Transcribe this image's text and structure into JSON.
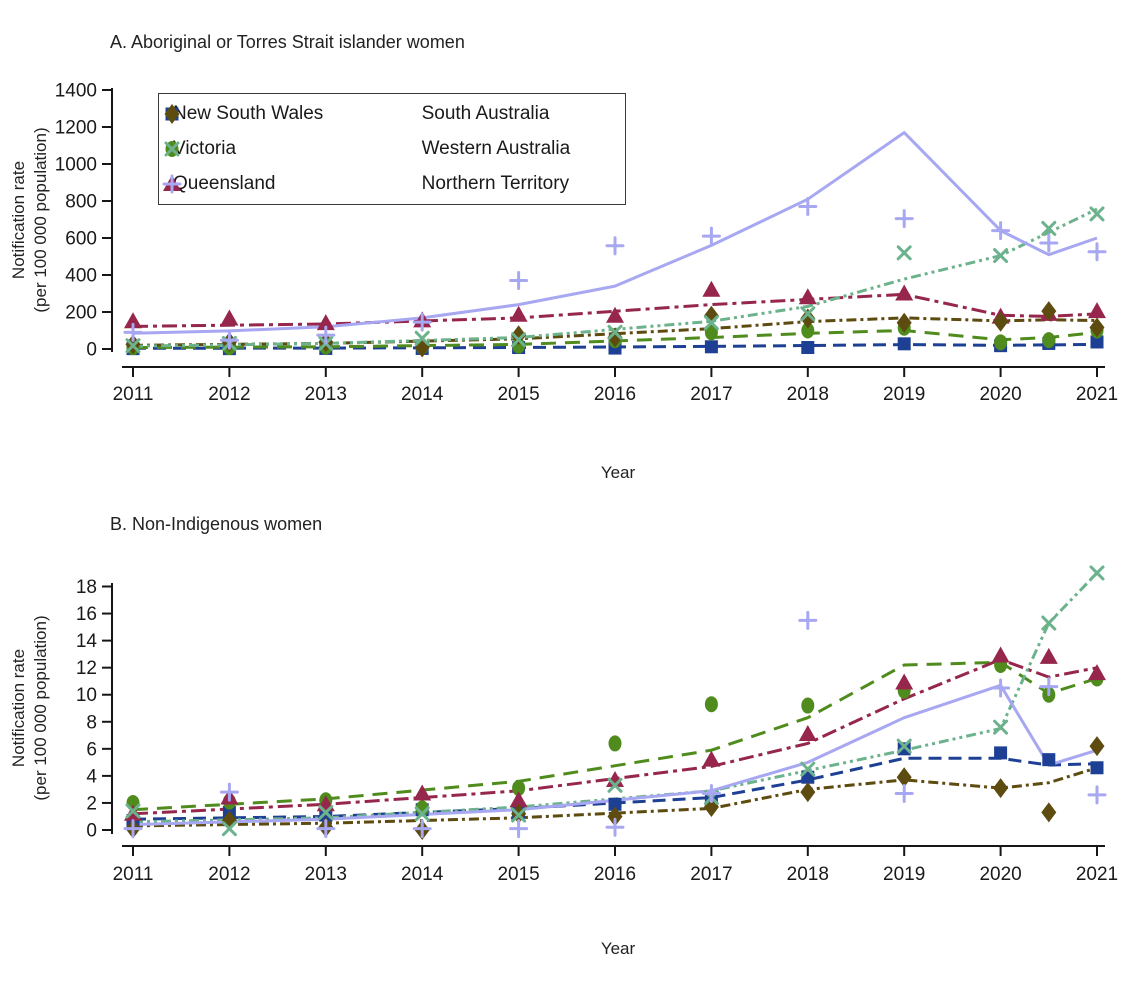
{
  "page": {
    "background": "#ffffff"
  },
  "legend": {
    "column1": [
      "New South Wales",
      "Victoria",
      "Queensland"
    ],
    "column2": [
      "South Australia",
      "Western Australia",
      "Northern Territory"
    ]
  },
  "series_styles": {
    "New South Wales": {
      "color": "#1e4094",
      "marker": "square",
      "dash": "13 7"
    },
    "Victoria": {
      "color": "#4f8c1d",
      "marker": "circle",
      "dash": "15 9"
    },
    "Queensland": {
      "color": "#96264c",
      "marker": "triangle",
      "dash": "15 5 4 5"
    },
    "South Australia": {
      "color": "#5e4b10",
      "marker": "diamond",
      "dash": "10 4 3 4"
    },
    "Western Australia": {
      "color": "#6cb28c",
      "marker": "x",
      "dash": "10 4 3 4 3 4"
    },
    "Northern Territory": {
      "color": "#a7a7f2",
      "marker": "plus",
      "dash": "none"
    }
  },
  "chart_data": [
    {
      "type": "scatter",
      "panel": "A",
      "title": "A. Aboriginal or Torres Strait islander women",
      "xlabel": "Year",
      "ylabel_line1": "Notification rate",
      "ylabel_line2": "(per 100 000 population)",
      "ylim": [
        0,
        1400
      ],
      "yticks": [
        0,
        200,
        400,
        600,
        800,
        1000,
        1200,
        1400
      ],
      "xticks": [
        2011,
        2012,
        2013,
        2014,
        2015,
        2016,
        2017,
        2018,
        2019,
        2020,
        2021
      ],
      "x_points": [
        2011,
        2012,
        2013,
        2014,
        2015,
        2016,
        2017,
        2018,
        2019,
        2020,
        2020.5,
        2021
      ],
      "grid": false,
      "legend_position": "top-left-inside",
      "series": [
        {
          "name": "New South Wales",
          "points": [
            2,
            2,
            3,
            3,
            8,
            5,
            12,
            8,
            28,
            18,
            30,
            38
          ],
          "fit_x": [
            2011,
            2013,
            2015,
            2017,
            2019,
            2020,
            2020.5,
            2021
          ],
          "fit_y": [
            4,
            5,
            8,
            14,
            24,
            20,
            22,
            25
          ]
        },
        {
          "name": "Victoria",
          "points": [
            10,
            10,
            12,
            12,
            18,
            48,
            90,
            100,
            115,
            36,
            48,
            100
          ],
          "fit_x": [
            2011,
            2013,
            2015,
            2017,
            2018,
            2019,
            2020,
            2020.5,
            2021
          ],
          "fit_y": [
            8,
            12,
            25,
            62,
            85,
            100,
            50,
            62,
            90
          ]
        },
        {
          "name": "Queensland",
          "points": [
            150,
            165,
            140,
            155,
            185,
            180,
            320,
            280,
            300,
            175,
            190,
            205
          ],
          "fit_x": [
            2011,
            2013,
            2015,
            2017,
            2018,
            2019,
            2020,
            2020.5,
            2021
          ],
          "fit_y": [
            122,
            135,
            168,
            240,
            268,
            295,
            182,
            176,
            190
          ]
        },
        {
          "name": "South Australia",
          "points": [
            25,
            37,
            37,
            8,
            74,
            63,
            180,
            165,
            142,
            147,
            205,
            116
          ],
          "fit_x": [
            2011,
            2013,
            2015,
            2017,
            2018,
            2019,
            2020,
            2020.5,
            2021
          ],
          "fit_y": [
            20,
            30,
            55,
            110,
            148,
            168,
            152,
            158,
            154
          ]
        },
        {
          "name": "Western Australia",
          "points": [
            18,
            30,
            30,
            58,
            50,
            90,
            142,
            190,
            520,
            505,
            652,
            730
          ],
          "fit_x": [
            2011,
            2013,
            2015,
            2017,
            2018,
            2019,
            2020,
            2020.5,
            2021
          ],
          "fit_y": [
            15,
            30,
            62,
            150,
            230,
            378,
            505,
            630,
            756
          ]
        },
        {
          "name": "Northern Territory",
          "points": [
            90,
            47,
            75,
            145,
            370,
            558,
            610,
            770,
            705,
            640,
            573,
            526
          ],
          "fit_x": [
            2011,
            2012,
            2013,
            2014,
            2015,
            2016,
            2017,
            2018,
            2019,
            2020,
            2020.5,
            2021
          ],
          "fit_y": [
            85,
            98,
            120,
            168,
            240,
            340,
            560,
            810,
            1170,
            640,
            510,
            600
          ]
        }
      ]
    },
    {
      "type": "scatter",
      "panel": "B",
      "title": "B. Non-Indigenous women",
      "xlabel": "Year",
      "ylabel_line1": "Notification rate",
      "ylabel_line2": "(per 100 000 population)",
      "ylim": [
        0,
        18
      ],
      "yticks": [
        0,
        2,
        4,
        6,
        8,
        10,
        12,
        14,
        16,
        18
      ],
      "xticks": [
        2011,
        2012,
        2013,
        2014,
        2015,
        2016,
        2017,
        2018,
        2019,
        2020,
        2021
      ],
      "x_points": [
        2011,
        2012,
        2013,
        2014,
        2015,
        2016,
        2017,
        2018,
        2019,
        2020,
        2020.5,
        2021
      ],
      "grid": false,
      "legend_position": "none",
      "series": [
        {
          "name": "New South Wales",
          "points": [
            0.7,
            1.3,
            1.1,
            1.5,
            1.3,
            1.9,
            2.1,
            3.9,
            6.0,
            5.7,
            5.2,
            4.6
          ],
          "fit_x": [
            2011,
            2013,
            2015,
            2017,
            2018,
            2019,
            2020,
            2020.5,
            2021
          ],
          "fit_y": [
            0.8,
            1.0,
            1.6,
            2.4,
            3.7,
            5.3,
            5.3,
            4.8,
            4.9
          ]
        },
        {
          "name": "Victoria",
          "points": [
            2.0,
            2.1,
            2.2,
            1.6,
            3.1,
            6.4,
            9.3,
            9.2,
            10.3,
            12.2,
            10.0,
            11.2
          ],
          "fit_x": [
            2011,
            2013,
            2015,
            2017,
            2018,
            2019,
            2020,
            2020.5,
            2021
          ],
          "fit_y": [
            1.5,
            2.3,
            3.6,
            5.9,
            8.3,
            12.2,
            12.4,
            10.1,
            11.2
          ]
        },
        {
          "name": "Queensland",
          "points": [
            1.2,
            2.4,
            1.9,
            2.7,
            2.2,
            3.7,
            5.2,
            7.1,
            10.9,
            12.9,
            12.8,
            11.6
          ],
          "fit_x": [
            2011,
            2013,
            2015,
            2017,
            2018,
            2019,
            2020,
            2020.5,
            2021
          ],
          "fit_y": [
            1.2,
            1.9,
            2.9,
            4.7,
            6.4,
            9.7,
            12.6,
            11.3,
            12.0
          ]
        },
        {
          "name": "South Australia",
          "points": [
            0.1,
            0.7,
            0.2,
            0.0,
            1.2,
            1.0,
            1.7,
            2.8,
            3.9,
            3.1,
            1.3,
            6.2
          ],
          "fit_x": [
            2011,
            2013,
            2015,
            2017,
            2018,
            2019,
            2020,
            2020.5,
            2021
          ],
          "fit_y": [
            0.3,
            0.5,
            0.9,
            1.6,
            3.0,
            3.7,
            3.1,
            3.5,
            4.6
          ]
        },
        {
          "name": "Western Australia",
          "points": [
            1.4,
            0.1,
            1.3,
            1.2,
            1.1,
            3.3,
            2.4,
            4.5,
            6.2,
            7.6,
            15.3,
            19.0
          ],
          "fit_x": [
            2011,
            2013,
            2015,
            2017,
            2018,
            2019,
            2020,
            2020.5,
            2021
          ],
          "fit_y": [
            0.6,
            0.9,
            1.7,
            2.9,
            4.4,
            5.9,
            7.5,
            15.3,
            19.0
          ]
        },
        {
          "name": "Northern Territory",
          "points": [
            0.1,
            2.8,
            0.1,
            0.1,
            0.1,
            0.2,
            2.7,
            15.5,
            2.7,
            10.5,
            10.6,
            2.6
          ],
          "fit_x": [
            2011,
            2013,
            2015,
            2017,
            2018,
            2019,
            2020,
            2020.5,
            2021
          ],
          "fit_y": [
            0.4,
            0.8,
            1.5,
            2.9,
            5.0,
            8.3,
            10.7,
            4.8,
            5.9
          ]
        }
      ]
    }
  ]
}
